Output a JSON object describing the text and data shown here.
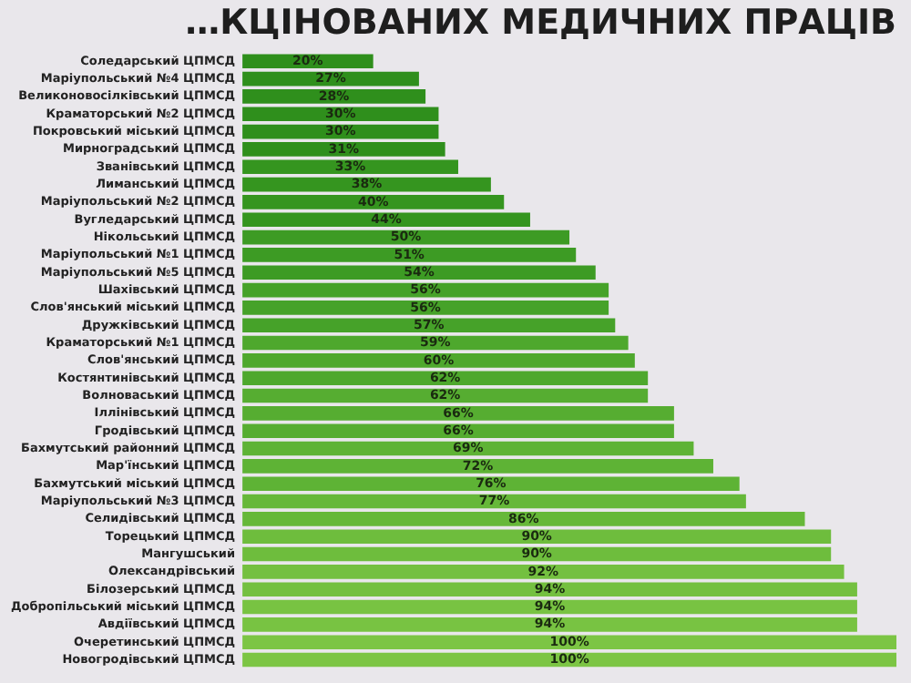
{
  "chart_data": {
    "type": "bar",
    "orientation": "horizontal",
    "title": "…КЦІНОВАНИХ МЕДИЧНИХ ПРАЦІВ",
    "tick_labels": "y",
    "legend": false,
    "categories": [
      "Соледарський ЦПМСД",
      "Маріупольський №4 ЦПМСД",
      "Великоновосілківський ЦПМСД",
      "Краматорський №2 ЦПМСД",
      "Покровський міський ЦПМСД",
      "Мирноградський ЦПМСД",
      "Званівський ЦПМСД",
      "Лиманський ЦПМСД",
      "Маріупольський №2 ЦПМСД",
      "Вугледарський ЦПМСД",
      "Нікольський ЦПМСД",
      "Маріупольський №1 ЦПМСД",
      "Маріупольський №5 ЦПМСД",
      "Шахівський ЦПМСД",
      "Слов'янський міський ЦПМСД",
      "Дружківський ЦПМСД",
      "Краматорський №1 ЦПМСД",
      "Слов'янський ЦПМСД",
      "Костянтинівський ЦПМСД",
      "Волноваський ЦПМСД",
      "Іллінівський ЦПМСД",
      "Гродівський ЦПМСД",
      "Бахмутський районний ЦПМСД",
      "Мар'їнський ЦПМСД",
      "Бахмутський міський ЦПМСД",
      "Маріупольський №3 ЦПМСД",
      "Селидівський ЦПМСД",
      "Торецький ЦПМСД",
      "Мангушський",
      "Олександрівський",
      "Білозерський ЦПМСД",
      "Добропільський міський ЦПМСД",
      "Авдіївський ЦПМСД",
      "Очеретинський ЦПМСД",
      "Новогродівський ЦПМСД"
    ],
    "values": [
      20,
      27,
      28,
      30,
      30,
      31,
      33,
      38,
      40,
      44,
      50,
      51,
      54,
      56,
      56,
      57,
      59,
      60,
      62,
      62,
      66,
      66,
      69,
      72,
      76,
      77,
      86,
      90,
      90,
      92,
      94,
      94,
      94,
      100,
      100
    ],
    "value_labels": [
      "20%",
      "27%",
      "28%",
      "30%",
      "30%",
      "31%",
      "33%",
      "38%",
      "40%",
      "44%",
      "50%",
      "51%",
      "54%",
      "56%",
      "56%",
      "57%",
      "59%",
      "60%",
      "62%",
      "62%",
      "66%",
      "66%",
      "69%",
      "72%",
      "76%",
      "77%",
      "86%",
      "90%",
      "90%",
      "92%",
      "94%",
      "94%",
      "94%",
      "100%",
      "100%"
    ],
    "colors": [
      "#2f8f1c",
      "#2f8f1c",
      "#2f8f1c",
      "#2f8f1c",
      "#2f8f1c",
      "#2f8f1c",
      "#35951f",
      "#35951f",
      "#35951f",
      "#35951f",
      "#3d9b24",
      "#3d9b24",
      "#3d9b24",
      "#46a229",
      "#46a229",
      "#46a229",
      "#4ea82d",
      "#4ea82d",
      "#4ea82d",
      "#56ad31",
      "#56ad31",
      "#56ad31",
      "#5eb335",
      "#5eb335",
      "#5eb335",
      "#66b839",
      "#66b839",
      "#6ebd3d",
      "#6ebd3d",
      "#74c040",
      "#74c040",
      "#78c342",
      "#78c342",
      "#7cc544",
      "#7cc544"
    ]
  }
}
